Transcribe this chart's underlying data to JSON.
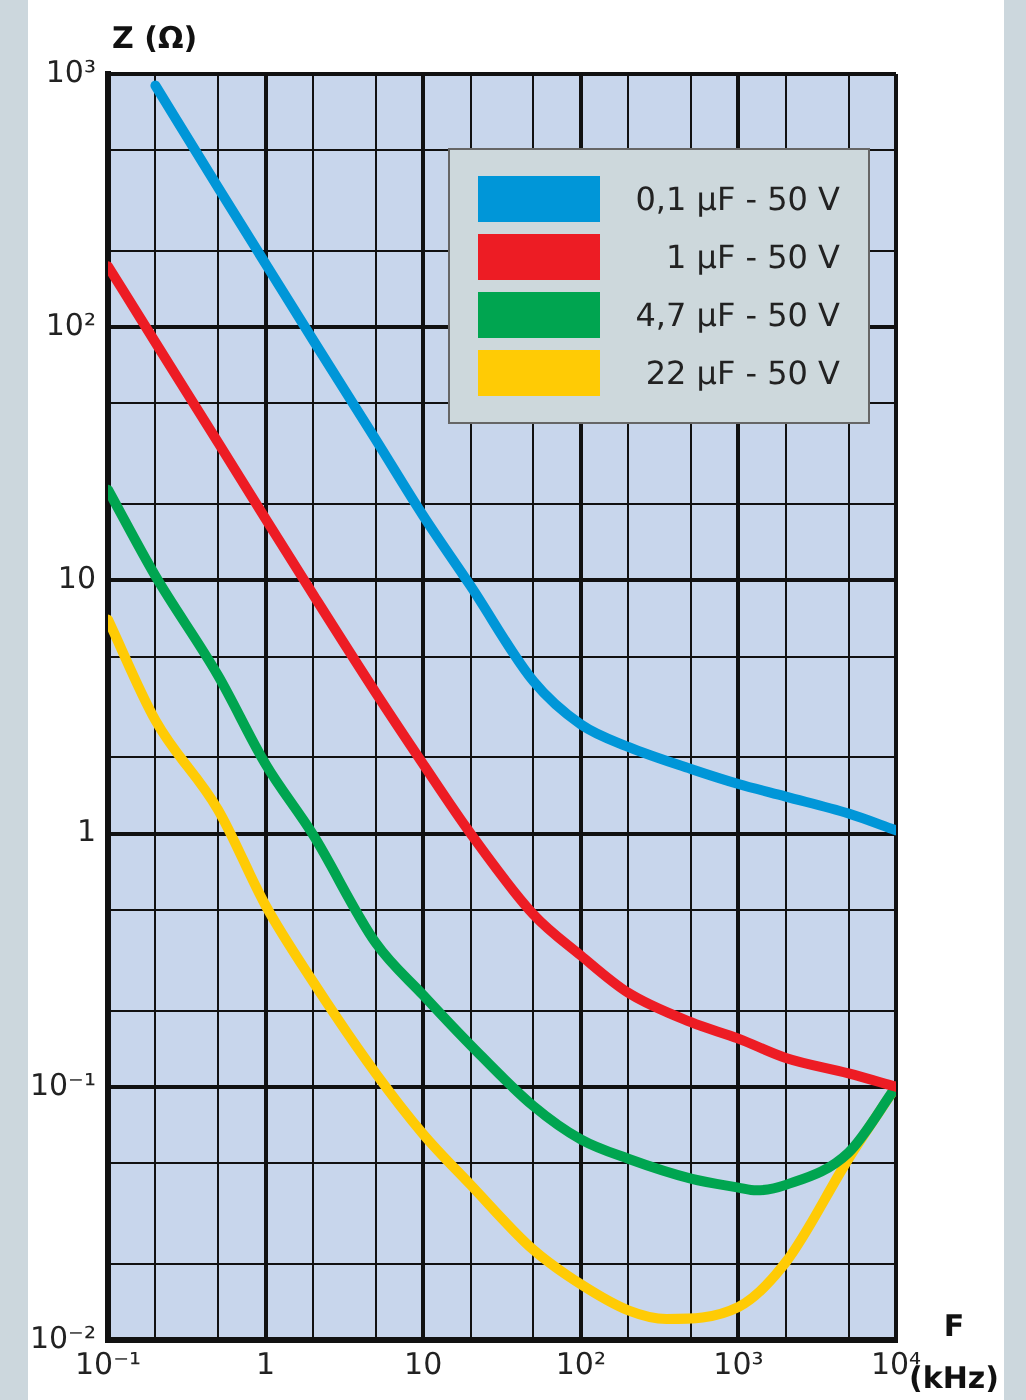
{
  "chart_data": {
    "type": "line",
    "xlabel": "F (kHz)",
    "ylabel": "Z (Ω)",
    "log": "xy",
    "grid": true,
    "legend": "top right",
    "marker": "none",
    "line_style": "solid",
    "xlim": [
      0.1,
      10000
    ],
    "xticks": [
      {
        "value": 0.1,
        "label": "10⁻¹"
      },
      {
        "value": 0.2,
        "label": null
      },
      {
        "value": 0.5,
        "label": null
      },
      1,
      {
        "value": 2,
        "label": null
      },
      {
        "value": 5,
        "label": null
      },
      10,
      {
        "value": 20,
        "label": null
      },
      {
        "value": 50,
        "label": null
      },
      {
        "value": 100,
        "label": "10²"
      },
      {
        "value": 200,
        "label": null
      },
      {
        "value": 500,
        "label": null
      },
      {
        "value": 1000,
        "label": "10³"
      },
      {
        "value": 2000,
        "label": null
      },
      {
        "value": 5000,
        "label": null
      },
      {
        "value": 10000,
        "label": "10⁴"
      }
    ],
    "ylim": [
      0.01,
      1000
    ],
    "yticks": [
      {
        "value": 0.01,
        "label": "10⁻²"
      },
      {
        "value": 0.02,
        "label": null
      },
      {
        "value": 0.05,
        "label": null
      },
      {
        "value": 0.1,
        "label": "10⁻¹"
      },
      {
        "value": 0.2,
        "label": null
      },
      {
        "value": 0.5,
        "label": null
      },
      1,
      {
        "value": 2,
        "label": null
      },
      {
        "value": 5,
        "label": null
      },
      10,
      {
        "value": 20,
        "label": null
      },
      {
        "value": 50,
        "label": null
      },
      {
        "value": 100,
        "label": "10²"
      },
      {
        "value": 200,
        "label": null
      },
      {
        "value": 500,
        "label": null
      },
      {
        "value": 1000,
        "label": "10³"
      }
    ],
    "series": [
      {
        "name": "0,1 µF - 50 V",
        "color": "#0096d8",
        "x": [
          0.2,
          0.5,
          1,
          2,
          5,
          10,
          20,
          50,
          100,
          200,
          500,
          1000,
          2000,
          5000,
          10000
        ],
        "values": [
          900,
          356,
          178,
          89,
          36,
          18,
          9.5,
          4.0,
          2.7,
          2.2,
          1.8,
          1.57,
          1.4,
          1.2,
          1.03
        ]
      },
      {
        "name": "1 µF - 50 V",
        "color": "#ed1c24",
        "x": [
          0.1,
          0.2,
          0.5,
          1,
          2,
          5,
          10,
          20,
          50,
          100,
          200,
          500,
          1000,
          2000,
          5000,
          10000
        ],
        "values": [
          174,
          87,
          35,
          17.5,
          8.8,
          3.6,
          1.88,
          1.0,
          0.48,
          0.33,
          0.235,
          0.18,
          0.155,
          0.13,
          0.113,
          0.1
        ]
      },
      {
        "name": "4,7 µF - 50 V",
        "color": "#00a550",
        "x": [
          0.1,
          0.2,
          0.5,
          1,
          2,
          5,
          10,
          20,
          50,
          100,
          200,
          500,
          1000,
          1300,
          2000,
          5000,
          10000
        ],
        "values": [
          22.8,
          10.4,
          4.2,
          1.88,
          0.99,
          0.37,
          0.23,
          0.146,
          0.084,
          0.062,
          0.052,
          0.0434,
          0.04,
          0.039,
          0.041,
          0.055,
          0.1
        ]
      },
      {
        "name": "22 µF - 50 V",
        "color": "#ffcb05",
        "x": [
          0.1,
          0.2,
          0.5,
          1,
          2,
          5,
          10,
          20,
          50,
          100,
          200,
          350,
          1000,
          2000,
          5000,
          10000
        ],
        "values": [
          7.0,
          2.8,
          1.24,
          0.52,
          0.26,
          0.113,
          0.065,
          0.041,
          0.0227,
          0.0166,
          0.0131,
          0.0121,
          0.0135,
          0.0203,
          0.052,
          0.1
        ]
      }
    ]
  }
}
